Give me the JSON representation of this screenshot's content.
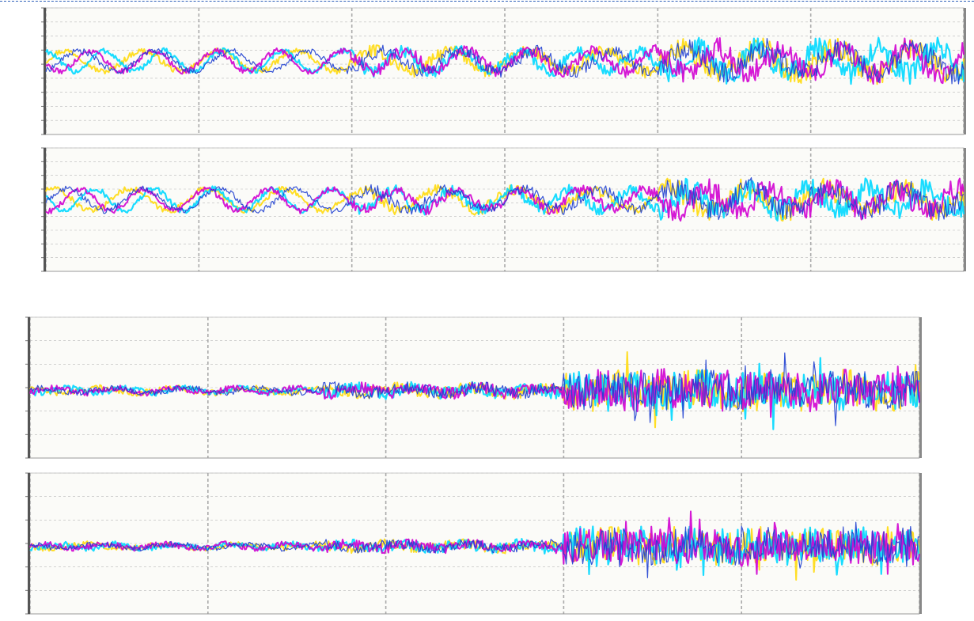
{
  "chart_data": [
    {
      "type": "line",
      "title": "",
      "xlabel": "",
      "ylabel": "",
      "grid": true,
      "legend": "none",
      "series_count": 4,
      "colors": [
        "#ffd800",
        "#00d8ff",
        "#d000d0",
        "#2040d0"
      ],
      "segments": [
        {
          "from": 0.0,
          "to": 0.33,
          "amplitude": 0.9,
          "noise": 0.25
        },
        {
          "from": 0.33,
          "to": 0.67,
          "amplitude": 0.9,
          "noise": 0.55
        },
        {
          "from": 0.67,
          "to": 1.0,
          "amplitude": 1.1,
          "noise": 1.0
        }
      ],
      "x_ticks": 7,
      "y_ticks": 9
    },
    {
      "type": "line",
      "title": "",
      "xlabel": "",
      "ylabel": "",
      "grid": true,
      "legend": "none",
      "series_count": 4,
      "colors": [
        "#ffd800",
        "#00d8ff",
        "#d000d0",
        "#2040d0"
      ],
      "segments": [
        {
          "from": 0.0,
          "to": 0.33,
          "amplitude": 1.0,
          "noise": 0.25
        },
        {
          "from": 0.33,
          "to": 0.67,
          "amplitude": 0.9,
          "noise": 0.5
        },
        {
          "from": 0.67,
          "to": 1.0,
          "amplitude": 1.0,
          "noise": 1.0
        }
      ],
      "x_ticks": 7,
      "y_ticks": 9
    },
    {
      "type": "line",
      "title": "",
      "xlabel": "",
      "ylabel": "",
      "grid": true,
      "legend": "none",
      "series_count": 4,
      "colors": [
        "#ffd800",
        "#00d8ff",
        "#d000d0",
        "#2040d0"
      ],
      "segments": [
        {
          "from": 0.0,
          "to": 0.33,
          "amplitude": 0.3,
          "noise": 0.35
        },
        {
          "from": 0.33,
          "to": 0.6,
          "amplitude": 0.35,
          "noise": 0.7
        },
        {
          "from": 0.6,
          "to": 1.0,
          "amplitude": 0.4,
          "noise": 2.2
        }
      ],
      "x_ticks": 6,
      "y_ticks": 6
    },
    {
      "type": "line",
      "title": "",
      "xlabel": "",
      "ylabel": "",
      "grid": true,
      "legend": "none",
      "series_count": 4,
      "colors": [
        "#ffd800",
        "#00d8ff",
        "#d000d0",
        "#2040d0"
      ],
      "segments": [
        {
          "from": 0.0,
          "to": 0.33,
          "amplitude": 0.25,
          "noise": 0.35
        },
        {
          "from": 0.33,
          "to": 0.6,
          "amplitude": 0.3,
          "noise": 0.6
        },
        {
          "from": 0.6,
          "to": 1.0,
          "amplitude": 0.35,
          "noise": 2.0
        }
      ],
      "x_ticks": 6,
      "y_ticks": 6
    }
  ],
  "page": {
    "border_color": "#2c5fb8",
    "grid_color": "#b8b8b8",
    "axis_color": "#555555"
  }
}
